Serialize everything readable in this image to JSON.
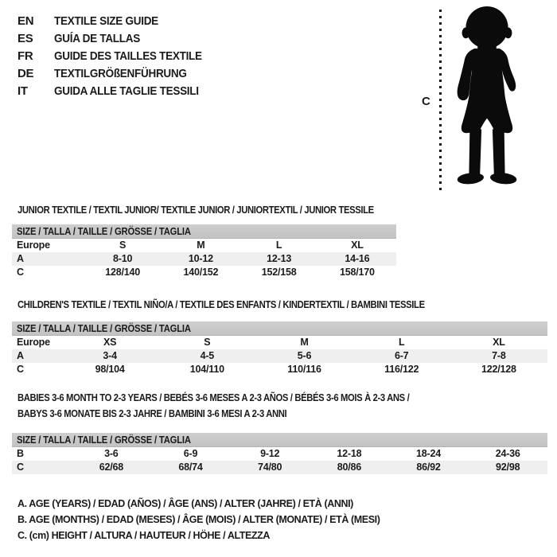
{
  "languages": [
    {
      "code": "EN",
      "label": "TEXTILE SIZE GUIDE"
    },
    {
      "code": "ES",
      "label": "GUÍA DE TALLAS"
    },
    {
      "code": "FR",
      "label": "GUIDE DES TAILLES TEXTILE"
    },
    {
      "code": "DE",
      "label": "TEXTILGRÖßENFÜHRUNG"
    },
    {
      "code": "IT",
      "label": "GUIDA ALLE TAGLIE TESSILI"
    }
  ],
  "figure": {
    "illustration": "toddler-silhouette",
    "measurement_label": "C"
  },
  "sections": [
    {
      "title": "JUNIOR TEXTILE / TEXTIL JUNIOR/ TEXTILE JUNIOR / JUNIORTEXTIL / JUNIOR TESSILE",
      "table": {
        "header": "SIZE / TALLA / TAILLE / GRÖSSE / TAGLIA",
        "rows": [
          {
            "label": "Europe",
            "values": [
              "S",
              "M",
              "L",
              "XL"
            ]
          },
          {
            "label": "A",
            "values": [
              "8-10",
              "10-12",
              "12-13",
              "14-16"
            ]
          },
          {
            "label": "C",
            "values": [
              "128/140",
              "140/152",
              "152/158",
              "158/170"
            ]
          }
        ]
      }
    },
    {
      "title": "CHILDREN'S TEXTILE / TEXTIL NIÑO/A / TEXTILE DES ENFANTS / KINDERTEXTIL / BAMBINI TESSILE",
      "table": {
        "header": "SIZE / TALLA / TAILLE / GRÖSSE / TAGLIA",
        "rows": [
          {
            "label": "Europe",
            "values": [
              "XS",
              "S",
              "M",
              "L",
              "XL"
            ]
          },
          {
            "label": "A",
            "values": [
              "3-4",
              "4-5",
              "5-6",
              "6-7",
              "7-8"
            ]
          },
          {
            "label": "C",
            "values": [
              "98/104",
              "104/110",
              "110/116",
              "116/122",
              "122/128"
            ]
          }
        ]
      }
    },
    {
      "title": "BABIES 3-6 MONTH TO 2-3 YEARS / BEBÉS 3-6 MESES A 2-3 AÑOS / BÉBÉS 3-6 MOIS À 2-3 ANS / BABYS 3-6 MONATE BIS 2-3 JAHRE / BAMBINI 3-6 MESI A 2-3 ANNI",
      "table": {
        "header": "SIZE / TALLA / TAILLE / GRÖSSE / TAGLIA",
        "rows": [
          {
            "label": "B",
            "values": [
              "3-6",
              "6-9",
              "9-12",
              "12-18",
              "18-24",
              "24-36"
            ]
          },
          {
            "label": "C",
            "values": [
              "62/68",
              "68/74",
              "74/80",
              "80/86",
              "86/92",
              "92/98"
            ]
          }
        ]
      }
    }
  ],
  "footnotes": [
    "A. AGE (YEARS) / EDAD (AÑOS) / ÂGE (ANS) / ALTER (JAHRE) / ETÀ (ANNI)",
    "B. AGE (MONTHS) / EDAD (MESES) / ÂGE (MOIS) / ALTER (MONATE) / ETÀ (MESI)",
    "C. (cm) HEIGHT / ALTURA / HAUTEUR / HÖHE / ALTEZZA"
  ],
  "colors": {
    "table_header_bar": "#c6c6c6",
    "row_alternate": "#efefef",
    "text": "#1b1b1b",
    "silhouette": "#0b0b0b"
  }
}
